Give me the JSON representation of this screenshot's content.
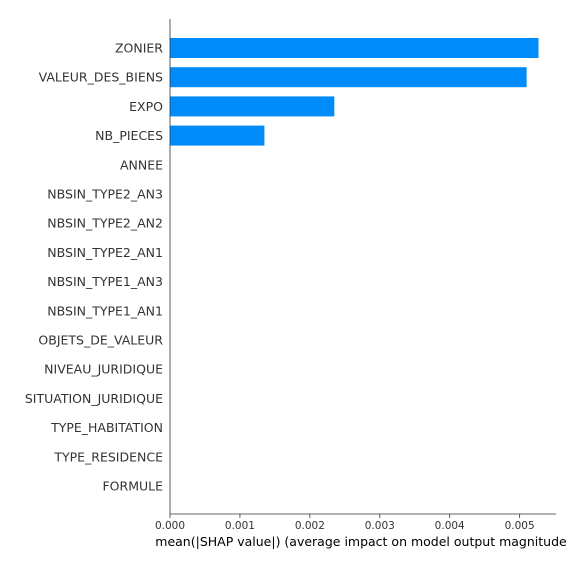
{
  "chart_data": {
    "type": "bar",
    "orientation": "horizontal",
    "bar_color": "#008bfb",
    "title": "",
    "xlabel": "mean(|SHAP value|) (average impact on model output magnitude",
    "ylabel": "",
    "xlim": [
      0,
      0.00552
    ],
    "xticks": [
      "0.000",
      "0.001",
      "0.002",
      "0.003",
      "0.004",
      "0.005"
    ],
    "grid": false,
    "categories": [
      "ZONIER",
      "VALEUR_DES_BIENS",
      "EXPO",
      "NB_PIECES",
      "ANNEE",
      "NBSIN_TYPE2_AN3",
      "NBSIN_TYPE2_AN2",
      "NBSIN_TYPE2_AN1",
      "NBSIN_TYPE1_AN3",
      "NBSIN_TYPE1_AN1",
      "OBJETS_DE_VALEUR",
      "NIVEAU_JURIDIQUE",
      "SITUATION_JURIDIQUE",
      "TYPE_HABITATION",
      "TYPE_RESIDENCE",
      "FORMULE"
    ],
    "values": [
      0.00527,
      0.0051,
      0.00235,
      0.00135,
      0,
      0,
      0,
      0,
      0,
      0,
      0,
      0,
      0,
      0,
      0,
      0
    ]
  }
}
